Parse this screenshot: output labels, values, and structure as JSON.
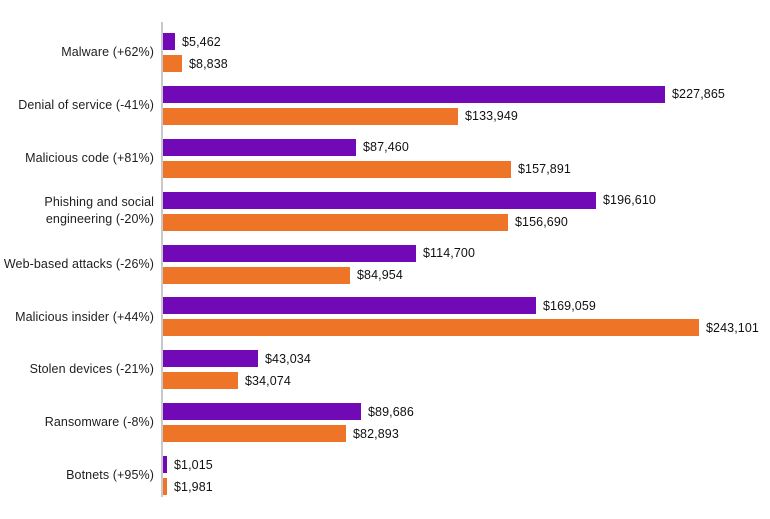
{
  "chart": {
    "axis_color": "#c9c9c9",
    "background_color": "#ffffff",
    "text_color": "#1e1e1e"
  },
  "chart_data": {
    "type": "bar",
    "orientation": "horizontal",
    "title": "",
    "xlabel": "",
    "ylabel": "",
    "grid": false,
    "legend_position": "none",
    "categories": [
      "Malware (+62%)",
      "Denial of service (-41%)",
      "Malicious code (+81%)",
      "Phishing and social engineering (-20%)",
      "Web-based attacks (-26%)",
      "Malicious insider (+44%)",
      "Stolen devices (-21%)",
      "Ransomware (-8%)",
      "Botnets (+95%)"
    ],
    "series": [
      {
        "name": "purple",
        "color": "#7209b7",
        "values": [
          5462,
          227865,
          87460,
          196610,
          114700,
          169059,
          43034,
          89686,
          1015
        ],
        "labels": [
          "$5,462",
          "$227,865",
          "$87,460",
          "$196,610",
          "$114,700",
          "$169,059",
          "$43,034",
          "$89,686",
          "$1,015"
        ]
      },
      {
        "name": "orange",
        "color": "#ee7428",
        "values": [
          8838,
          133949,
          157891,
          156690,
          84954,
          243101,
          34074,
          82893,
          1981
        ],
        "labels": [
          "$8,838",
          "$133,949",
          "$157,891",
          "$156,690",
          "$84,954",
          "$243,101",
          "$34,074",
          "$82,893",
          "$1,981"
        ]
      }
    ]
  }
}
